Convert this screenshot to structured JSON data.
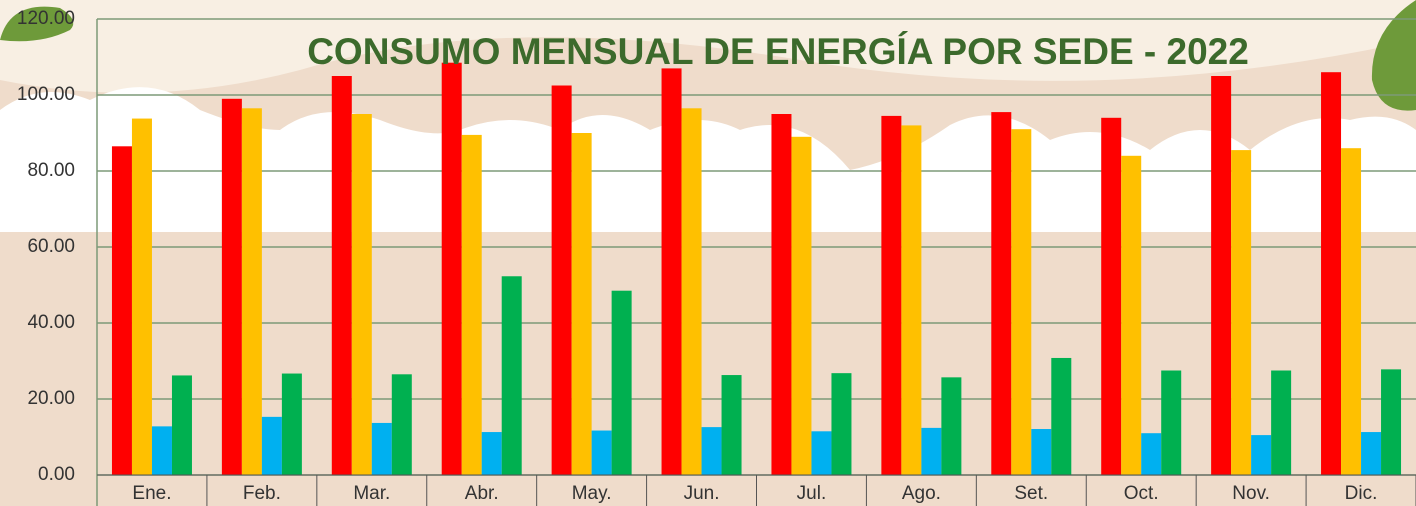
{
  "chart_data": {
    "type": "bar",
    "title": "CONSUMO MENSUAL DE ENERGÍA POR SEDE - 2022",
    "categories": [
      "Ene.",
      "Feb.",
      "Mar.",
      "Abr.",
      "May.",
      "Jun.",
      "Jul.",
      "Ago.",
      "Set.",
      "Oct.",
      "Nov.",
      "Dic."
    ],
    "series": [
      {
        "color": "#ff0000",
        "values": [
          86.5,
          99,
          105,
          108.5,
          102.5,
          107,
          95,
          94.5,
          95.5,
          94,
          105,
          106
        ]
      },
      {
        "color": "#ffc000",
        "values": [
          93.8,
          96.5,
          95,
          89.5,
          90,
          96.5,
          89,
          92,
          91,
          84,
          85.5,
          86
        ]
      },
      {
        "color": "#00b0f0",
        "values": [
          12.8,
          15.3,
          13.7,
          11.3,
          11.7,
          12.6,
          11.5,
          12.4,
          12.1,
          11,
          10.5,
          11.3
        ]
      },
      {
        "color": "#00b050",
        "values": [
          26.2,
          26.7,
          26.5,
          52.3,
          48.5,
          26.3,
          26.8,
          25.7,
          30.8,
          27.5,
          27.5,
          27.8
        ]
      }
    ],
    "ylim": [
      0,
      120
    ],
    "yticks": [
      {
        "value": 0,
        "label": "0.00"
      },
      {
        "value": 20,
        "label": "20.00"
      },
      {
        "value": 40,
        "label": "40.00"
      },
      {
        "value": 60,
        "label": "60.00"
      },
      {
        "value": 80,
        "label": "80.00"
      },
      {
        "value": 100,
        "label": "100.00"
      },
      {
        "value": 120,
        "label": "120.00"
      }
    ],
    "grid": true
  }
}
